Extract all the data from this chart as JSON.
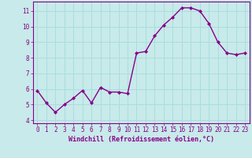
{
  "x": [
    0,
    1,
    2,
    3,
    4,
    5,
    6,
    7,
    8,
    9,
    10,
    11,
    12,
    13,
    14,
    15,
    16,
    17,
    18,
    19,
    20,
    21,
    22,
    23
  ],
  "y": [
    5.9,
    5.1,
    4.5,
    5.0,
    5.4,
    5.9,
    5.1,
    6.1,
    5.8,
    5.8,
    5.7,
    8.3,
    8.4,
    9.4,
    10.1,
    10.6,
    11.2,
    11.2,
    11.0,
    10.2,
    9.0,
    8.3,
    8.2,
    8.3
  ],
  "line_color": "#880088",
  "marker": "D",
  "marker_size": 2.0,
  "bg_color": "#c8eaea",
  "grid_color": "#aadddd",
  "xlabel": "Windchill (Refroidissement éolien,°C)",
  "xlabel_color": "#880088",
  "tick_color": "#880088",
  "spine_color": "#880088",
  "ylim": [
    3.8,
    11.6
  ],
  "xlim": [
    -0.5,
    23.5
  ],
  "yticks": [
    4,
    5,
    6,
    7,
    8,
    9,
    10,
    11
  ],
  "xticks": [
    0,
    1,
    2,
    3,
    4,
    5,
    6,
    7,
    8,
    9,
    10,
    11,
    12,
    13,
    14,
    15,
    16,
    17,
    18,
    19,
    20,
    21,
    22,
    23
  ],
  "line_width": 1.0,
  "tick_fontsize": 5.5,
  "xlabel_fontsize": 6.0
}
